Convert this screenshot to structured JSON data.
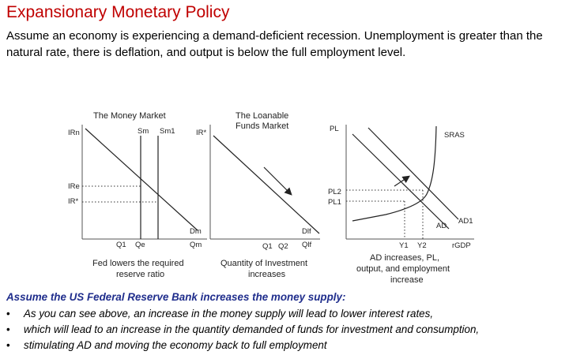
{
  "title": "Expansionary Monetary Policy",
  "intro": "Assume an economy is experiencing a demand-deficient recession. Unemployment is greater than the natural rate, there is deflation, and output is below the full employment level.",
  "money_market": {
    "title": "The Money Market",
    "y_top": "IRn",
    "y_e": "IRe",
    "y_star": "IR*",
    "sm": "Sm",
    "sm1": "Sm1",
    "dm": "Dm",
    "q1": "Q1",
    "qe": "Qe",
    "x_axis": "Qm",
    "caption_1": "Fed lowers the required",
    "caption_2": "reserve ratio"
  },
  "loanable_funds": {
    "title_1": "The Loanable",
    "title_2": "Funds Market",
    "y_axis": "IR*",
    "dlf": "Dlf",
    "q1": "Q1",
    "q2": "Q2",
    "x_axis": "Qlf",
    "caption_1": "Quantity of Investment",
    "caption_2": "increases"
  },
  "ad_as": {
    "y_axis": "PL",
    "pl2": "PL2",
    "pl1": "PL1",
    "sras": "SRAS",
    "ad": "AD",
    "ad1": "AD1",
    "y1": "Y1",
    "y2": "Y2",
    "x_axis": "rGDP",
    "caption_1": "AD increases, PL,",
    "caption_2": "output, and employment",
    "caption_3": "increase"
  },
  "assume_heading": "Assume the US Federal Reserve Bank increases the money supply:",
  "bullets": [
    "As you can see above, an increase in the money supply will lead to lower interest rates,",
    "which will lead to an increase in the quantity demanded of funds for investment and consumption,",
    "stimulating AD and moving the economy back to full employment"
  ],
  "bullet_symbol": "•"
}
